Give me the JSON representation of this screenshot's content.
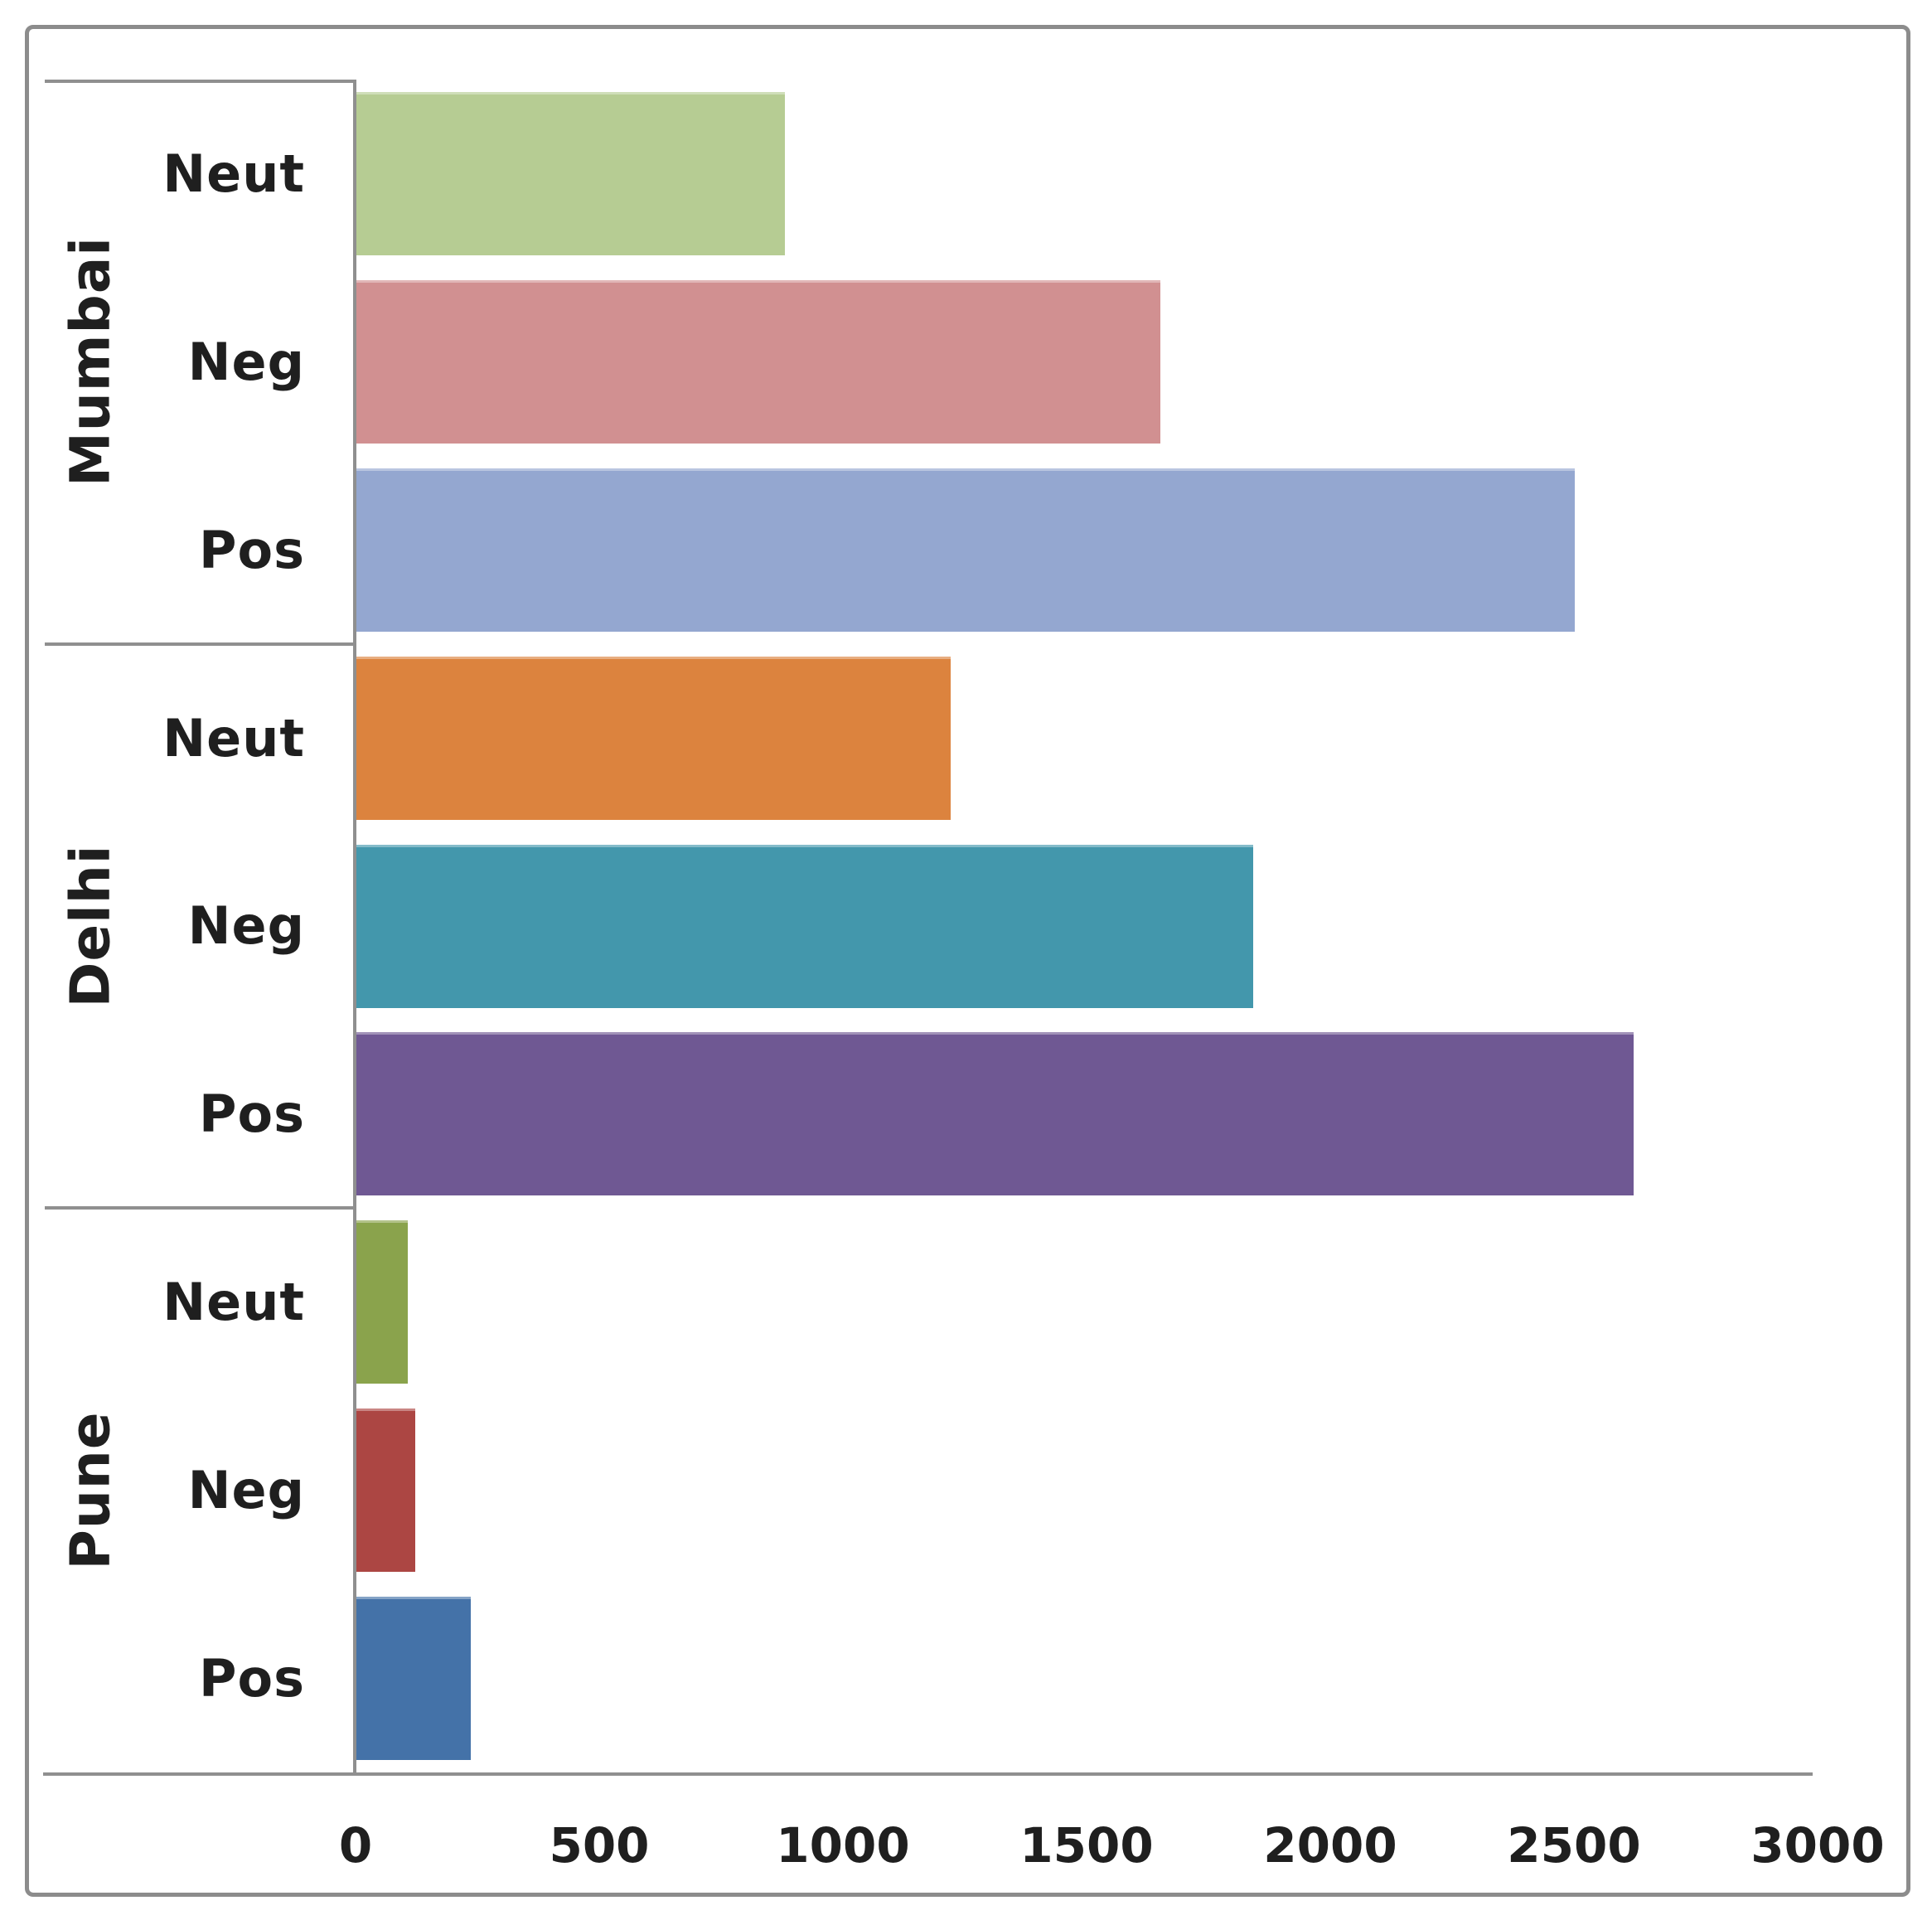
{
  "chart_data": {
    "type": "bar",
    "orientation": "horizontal",
    "title": "",
    "xlabel": "",
    "ylabel": "",
    "xlim": [
      0,
      3000
    ],
    "x_ticks": [
      0,
      500,
      1000,
      1500,
      2000,
      2500,
      3000
    ],
    "grid": "off",
    "legend": "none",
    "categories": [
      "Mumbai",
      "Delhi",
      "Pune"
    ],
    "groups": [
      {
        "name": "Mumbai",
        "bars": [
          {
            "label": "Neut",
            "value": 880,
            "color": "#B6CC93"
          },
          {
            "label": "Neg",
            "value": 1650,
            "color": "#D19091"
          },
          {
            "label": "Pos",
            "value": 2500,
            "color": "#94A7D0"
          }
        ]
      },
      {
        "name": "Delhi",
        "bars": [
          {
            "label": "Neut",
            "value": 1220,
            "color": "#DC833E"
          },
          {
            "label": "Neg",
            "value": 1840,
            "color": "#4397AC"
          },
          {
            "label": "Pos",
            "value": 2620,
            "color": "#6F5893"
          }
        ]
      },
      {
        "name": "Pune",
        "bars": [
          {
            "label": "Neut",
            "value": 105,
            "color": "#8AA34C"
          },
          {
            "label": "Neg",
            "value": 120,
            "color": "#AC4643"
          },
          {
            "label": "Pos",
            "value": 235,
            "color": "#4472A8"
          }
        ]
      }
    ],
    "colors": {
      "axis_line": "#8F8F8F",
      "frame_border": "#8C8C8C",
      "text": "#1F1F1F",
      "background": "#FFFFFF"
    }
  }
}
